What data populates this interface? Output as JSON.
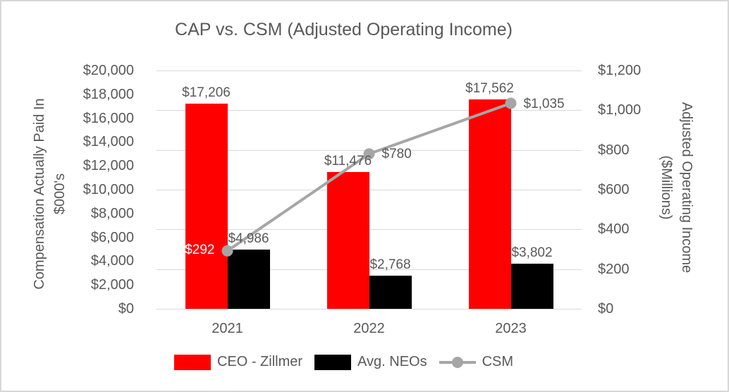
{
  "chart_data": {
    "type": "combo-bar-line",
    "title": "CAP vs. CSM (Adjusted Operating Income)",
    "categories": [
      "2021",
      "2022",
      "2023"
    ],
    "bar_series": [
      {
        "name": "CEO - Zillmer",
        "color": "#FF0000",
        "axis": "left",
        "values": [
          17206,
          11476,
          17562
        ],
        "value_labels": [
          "$17,206",
          "$11,476",
          "$17,562"
        ]
      },
      {
        "name": "Avg. NEOs",
        "color": "#000000",
        "axis": "left",
        "values": [
          4986,
          2768,
          3802
        ],
        "value_labels": [
          "$4,986",
          "$2,768",
          "$3,802"
        ]
      }
    ],
    "line_series": {
      "name": "CSM",
      "color": "#A6A6A6",
      "axis": "right",
      "values": [
        292,
        780,
        1035
      ],
      "value_labels": [
        "$292",
        "$780",
        "$1,035"
      ],
      "first_label_color": "#FFFFFF"
    },
    "left_axis": {
      "title": [
        "Compensation Actually Paid In",
        "$000's"
      ],
      "min": 0,
      "max": 20000,
      "step": 2000,
      "tick_labels": [
        "$20,000",
        "$18,000",
        "$16,000",
        "$14,000",
        "$12,000",
        "$10,000",
        "$8,000",
        "$6,000",
        "$4,000",
        "$2,000",
        "$0"
      ]
    },
    "right_axis": {
      "title": [
        "Adjusted Operating Income",
        "($Millions)"
      ],
      "min": 0,
      "max": 1200,
      "step": 200,
      "tick_labels": [
        "$1,200",
        "$1,000",
        "$800",
        "$600",
        "$400",
        "$200",
        "$0"
      ]
    },
    "legend": {
      "position": "bottom",
      "entries": [
        {
          "label": "CEO - Zillmer",
          "marker": "bar",
          "color": "#FF0000"
        },
        {
          "label": "Avg. NEOs",
          "marker": "bar",
          "color": "#000000"
        },
        {
          "label": "CSM",
          "marker": "line",
          "color": "#A6A6A6"
        }
      ]
    },
    "grid": {
      "horizontal": true,
      "color": "#D9D9D9"
    },
    "text_color": "#595959"
  }
}
